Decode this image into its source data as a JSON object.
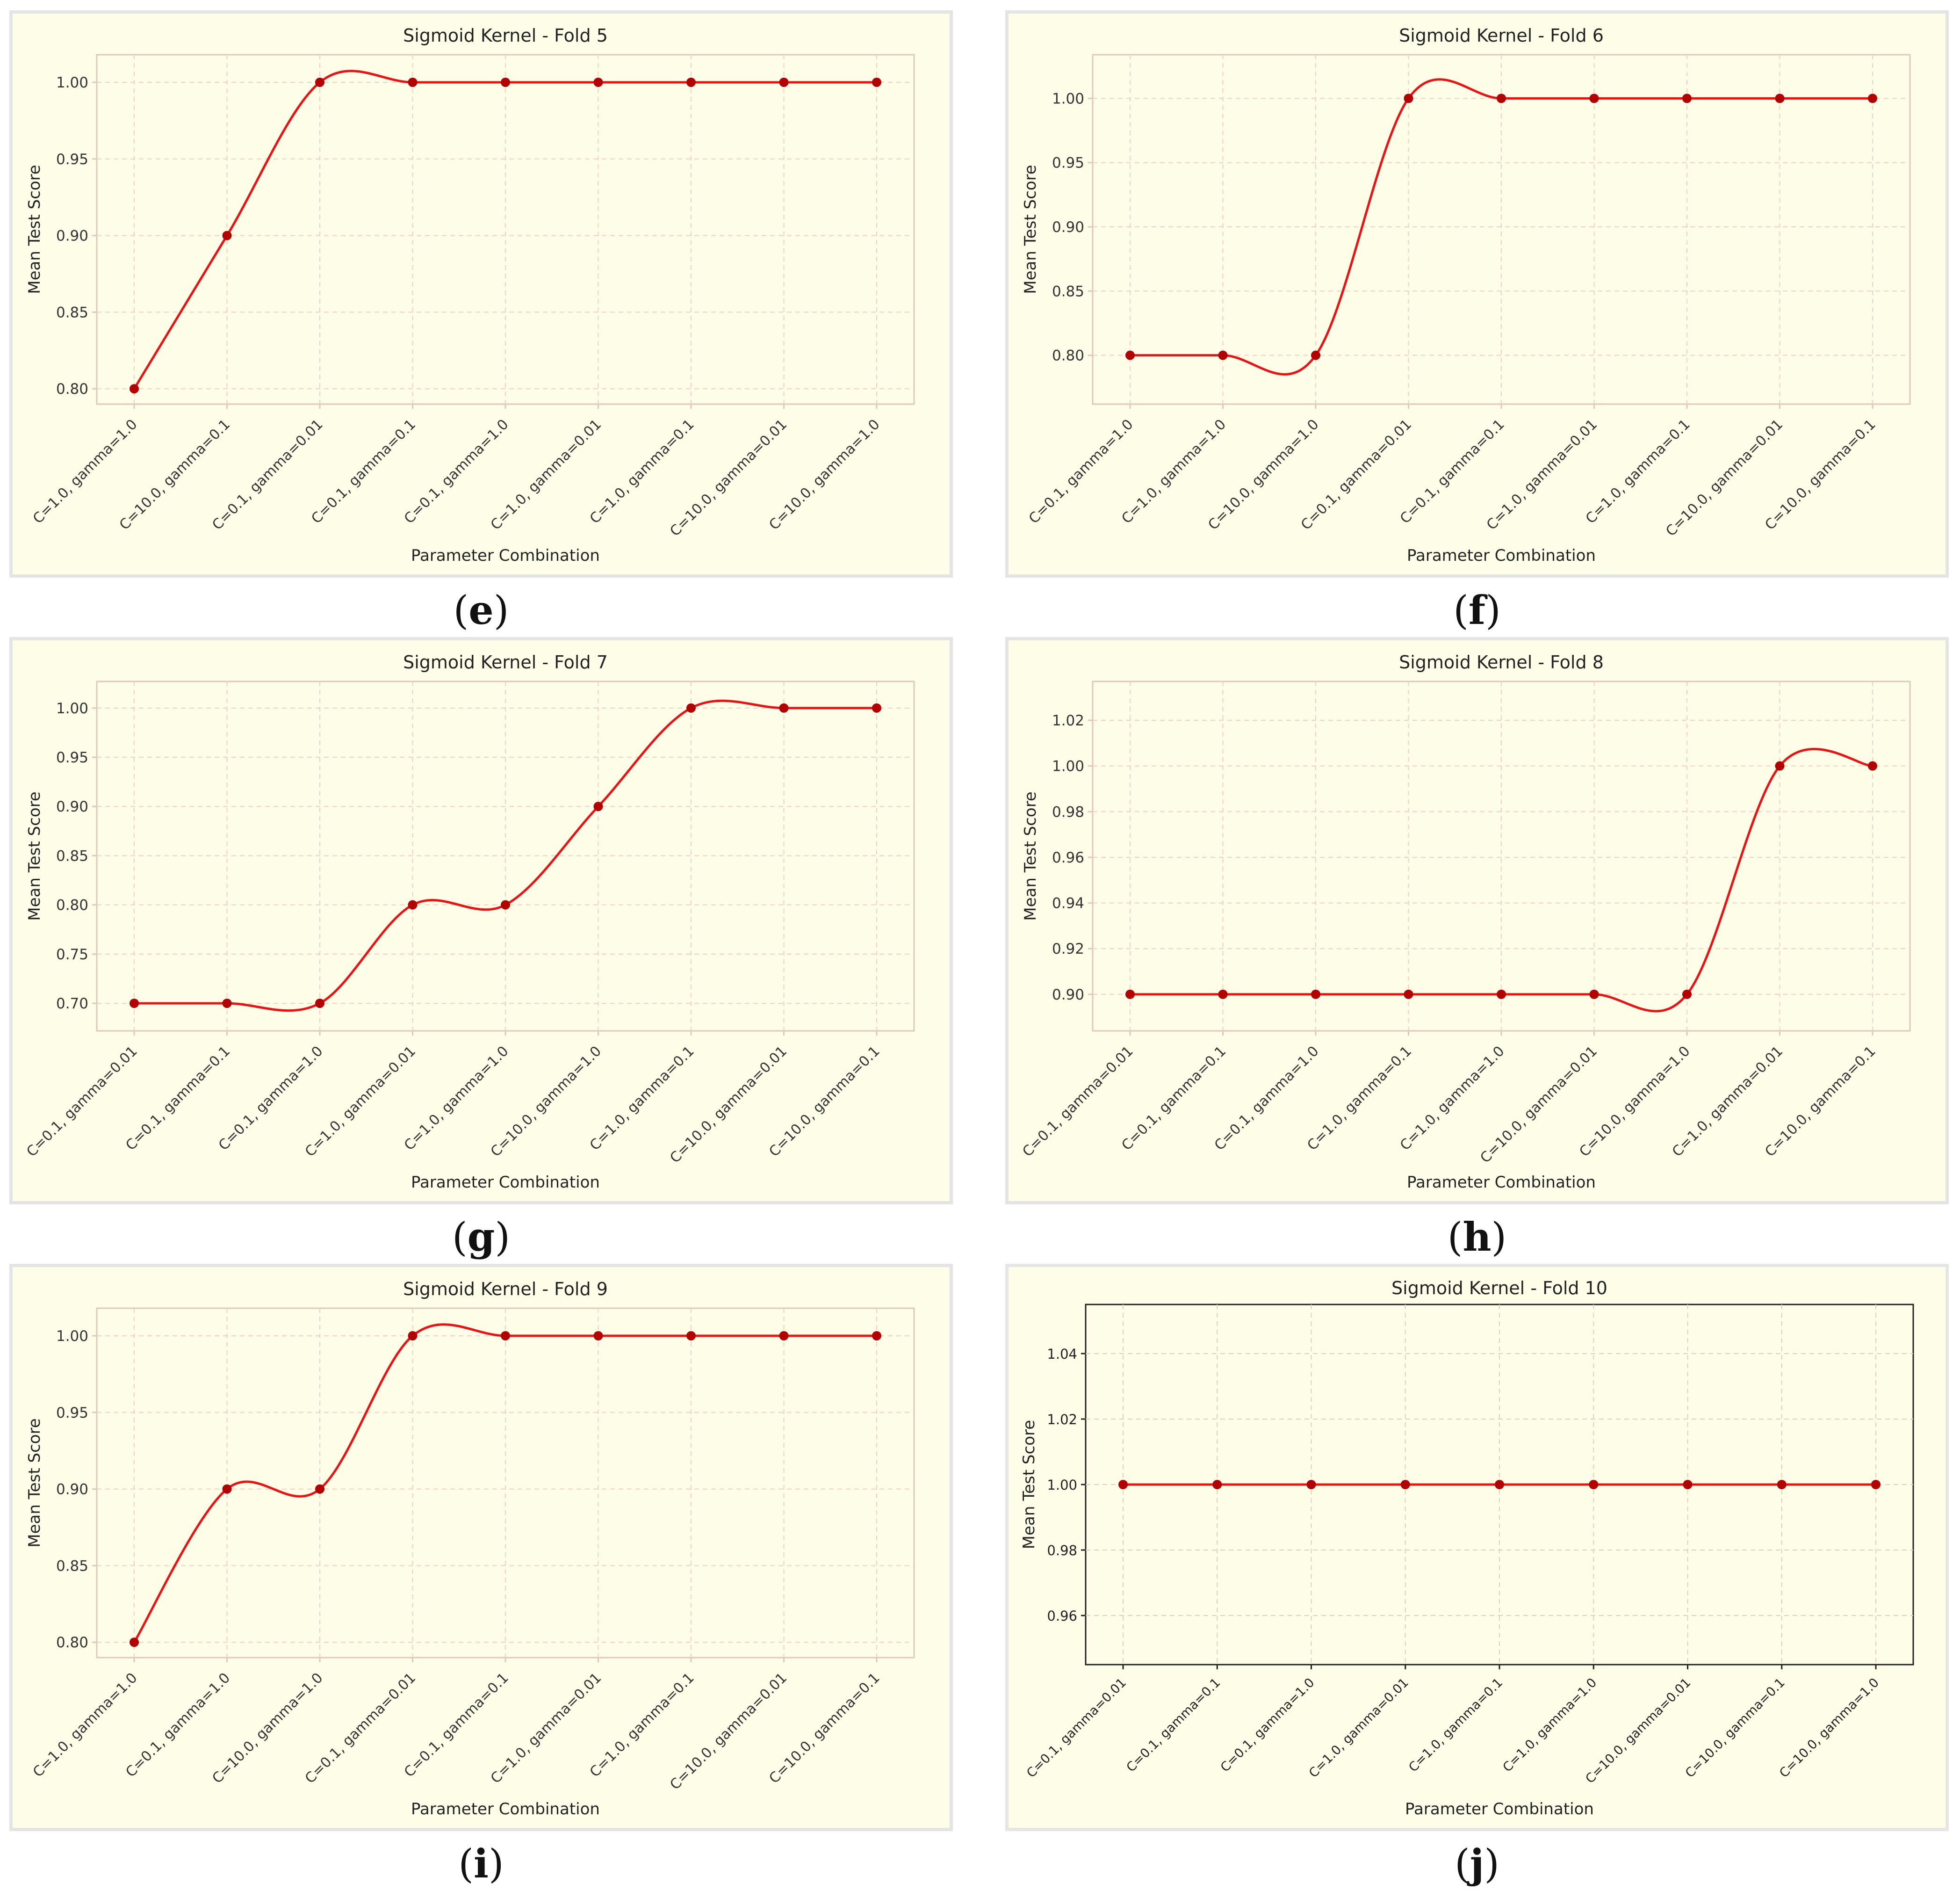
{
  "chart_data": [
    {
      "type": "line",
      "panel_label": "e",
      "title": "Sigmoid Kernel - Fold 5",
      "xlabel": "Parameter Combination",
      "ylabel": "Mean Test Score",
      "categories": [
        "C=1.0, gamma=1.0",
        "C=10.0, gamma=0.1",
        "C=0.1, gamma=0.01",
        "C=0.1, gamma=0.1",
        "C=0.1, gamma=1.0",
        "C=1.0, gamma=0.01",
        "C=1.0, gamma=0.1",
        "C=10.0, gamma=0.01",
        "C=10.0, gamma=1.0"
      ],
      "values": [
        0.8,
        0.9,
        1.0,
        1.0,
        1.0,
        1.0,
        1.0,
        1.0,
        1.0
      ],
      "ylim": [
        0.79,
        1.018
      ],
      "yticks": [
        0.8,
        0.85,
        0.9,
        0.95,
        1.0
      ],
      "tick_decimals": 2,
      "grid": true,
      "style": "warm",
      "color": "#ee1111"
    },
    {
      "type": "line",
      "panel_label": "f",
      "title": "Sigmoid Kernel - Fold 6",
      "xlabel": "Parameter Combination",
      "ylabel": "Mean Test Score",
      "categories": [
        "C=0.1, gamma=1.0",
        "C=1.0, gamma=1.0",
        "C=10.0, gamma=1.0",
        "C=0.1, gamma=0.01",
        "C=0.1, gamma=0.1",
        "C=1.0, gamma=0.01",
        "C=1.0, gamma=0.1",
        "C=10.0, gamma=0.01",
        "C=10.0, gamma=0.1"
      ],
      "values": [
        0.8,
        0.8,
        0.8,
        1.0,
        1.0,
        1.0,
        1.0,
        1.0,
        1.0
      ],
      "ylim": [
        0.762,
        1.034
      ],
      "yticks": [
        0.8,
        0.85,
        0.9,
        0.95,
        1.0
      ],
      "tick_decimals": 2,
      "grid": true,
      "style": "warm",
      "color": "#ee1111"
    },
    {
      "type": "line",
      "panel_label": "g",
      "title": "Sigmoid Kernel - Fold 7",
      "xlabel": "Parameter Combination",
      "ylabel": "Mean Test Score",
      "categories": [
        "C=0.1, gamma=0.01",
        "C=0.1, gamma=0.1",
        "C=0.1, gamma=1.0",
        "C=1.0, gamma=0.01",
        "C=1.0, gamma=1.0",
        "C=10.0, gamma=1.0",
        "C=1.0, gamma=0.1",
        "C=10.0, gamma=0.01",
        "C=10.0, gamma=0.1"
      ],
      "values": [
        0.7,
        0.7,
        0.7,
        0.8,
        0.8,
        0.9,
        1.0,
        1.0,
        1.0
      ],
      "ylim": [
        0.672,
        1.027
      ],
      "yticks": [
        0.7,
        0.75,
        0.8,
        0.85,
        0.9,
        0.95,
        1.0
      ],
      "tick_decimals": 2,
      "grid": true,
      "style": "warm",
      "color": "#ee1111"
    },
    {
      "type": "line",
      "panel_label": "h",
      "title": "Sigmoid Kernel - Fold 8",
      "xlabel": "Parameter Combination",
      "ylabel": "Mean Test Score",
      "categories": [
        "C=0.1, gamma=0.01",
        "C=0.1, gamma=0.1",
        "C=0.1, gamma=1.0",
        "C=1.0, gamma=0.1",
        "C=1.0, gamma=1.0",
        "C=10.0, gamma=0.01",
        "C=10.0, gamma=1.0",
        "C=1.0, gamma=0.01",
        "C=10.0, gamma=0.1"
      ],
      "values": [
        0.9,
        0.9,
        0.9,
        0.9,
        0.9,
        0.9,
        0.9,
        1.0,
        1.0
      ],
      "ylim": [
        0.884,
        1.037
      ],
      "yticks": [
        0.9,
        0.92,
        0.94,
        0.96,
        0.98,
        1.0,
        1.02
      ],
      "tick_decimals": 2,
      "grid": true,
      "style": "warm",
      "color": "#ee1111"
    },
    {
      "type": "line",
      "panel_label": "i",
      "title": "Sigmoid Kernel - Fold 9",
      "xlabel": "Parameter Combination",
      "ylabel": "Mean Test Score",
      "categories": [
        "C=1.0, gamma=1.0",
        "C=0.1, gamma=1.0",
        "C=10.0, gamma=1.0",
        "C=0.1, gamma=0.01",
        "C=0.1, gamma=0.1",
        "C=1.0, gamma=0.01",
        "C=1.0, gamma=0.1",
        "C=10.0, gamma=0.01",
        "C=10.0, gamma=0.1"
      ],
      "values": [
        0.8,
        0.9,
        0.9,
        1.0,
        1.0,
        1.0,
        1.0,
        1.0,
        1.0
      ],
      "ylim": [
        0.79,
        1.018
      ],
      "yticks": [
        0.8,
        0.85,
        0.9,
        0.95,
        1.0
      ],
      "tick_decimals": 2,
      "grid": true,
      "style": "warm",
      "color": "#ee1111"
    },
    {
      "type": "line",
      "panel_label": "j",
      "title": "Sigmoid Kernel - Fold 10",
      "xlabel": "Parameter Combination",
      "ylabel": "Mean Test Score",
      "categories": [
        "C=0.1, gamma=0.01",
        "C=0.1, gamma=0.1",
        "C=0.1, gamma=1.0",
        "C=1.0, gamma=0.01",
        "C=1.0, gamma=0.1",
        "C=1.0, gamma=1.0",
        "C=10.0, gamma=0.01",
        "C=10.0, gamma=0.1",
        "C=10.0, gamma=1.0"
      ],
      "values": [
        1.0,
        1.0,
        1.0,
        1.0,
        1.0,
        1.0,
        1.0,
        1.0,
        1.0
      ],
      "ylim": [
        0.945,
        1.055
      ],
      "yticks": [
        0.96,
        0.98,
        1.0,
        1.02,
        1.04
      ],
      "tick_decimals": 2,
      "grid": true,
      "style": "plain",
      "color": "#ee1111"
    }
  ]
}
